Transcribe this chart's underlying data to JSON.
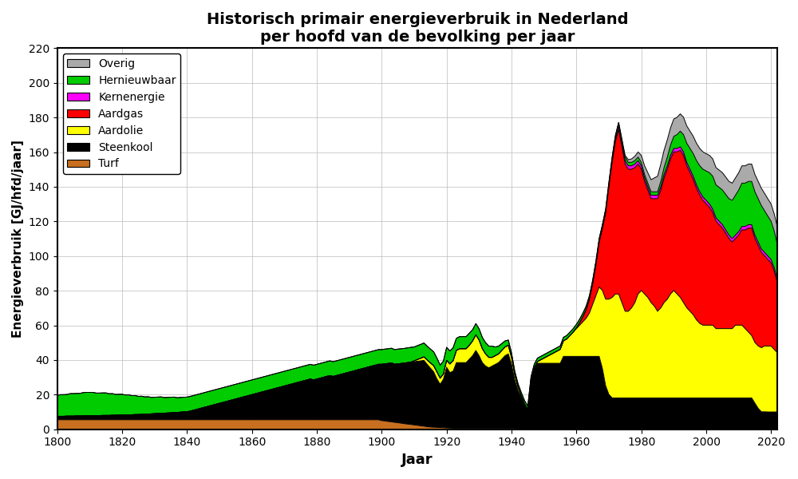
{
  "title": "Historisch primair energieverbruik in Nederland\nper hoofd van de bevolking per jaar",
  "xlabel": "Jaar",
  "ylabel": "Energieverbruik [GJ/hfd/jaar]",
  "ylim": [
    0,
    220
  ],
  "xlim": [
    1800,
    2022
  ],
  "yticks": [
    0,
    20,
    40,
    60,
    80,
    100,
    120,
    140,
    160,
    180,
    200,
    220
  ],
  "xticks": [
    1800,
    1820,
    1840,
    1860,
    1880,
    1900,
    1920,
    1940,
    1960,
    1980,
    2000,
    2020
  ],
  "legend_labels": [
    "Overig",
    "Hernieuwbaar",
    "Kernenergie",
    "Aardgas",
    "Aardolie",
    "Steenkool",
    "Turf"
  ],
  "colors": {
    "Turf": "#c87020",
    "Steenkool": "#000000",
    "Aardolie": "#ffff00",
    "Aardgas": "#ff0000",
    "Kernenergie": "#ff00ff",
    "Hernieuwbaar": "#00cc00",
    "Overig": "#aaaaaa"
  },
  "stack_order": [
    "Turf",
    "Steenkool",
    "Aardolie",
    "Aardgas",
    "Kernenergie",
    "Hernieuwbaar",
    "Overig"
  ]
}
